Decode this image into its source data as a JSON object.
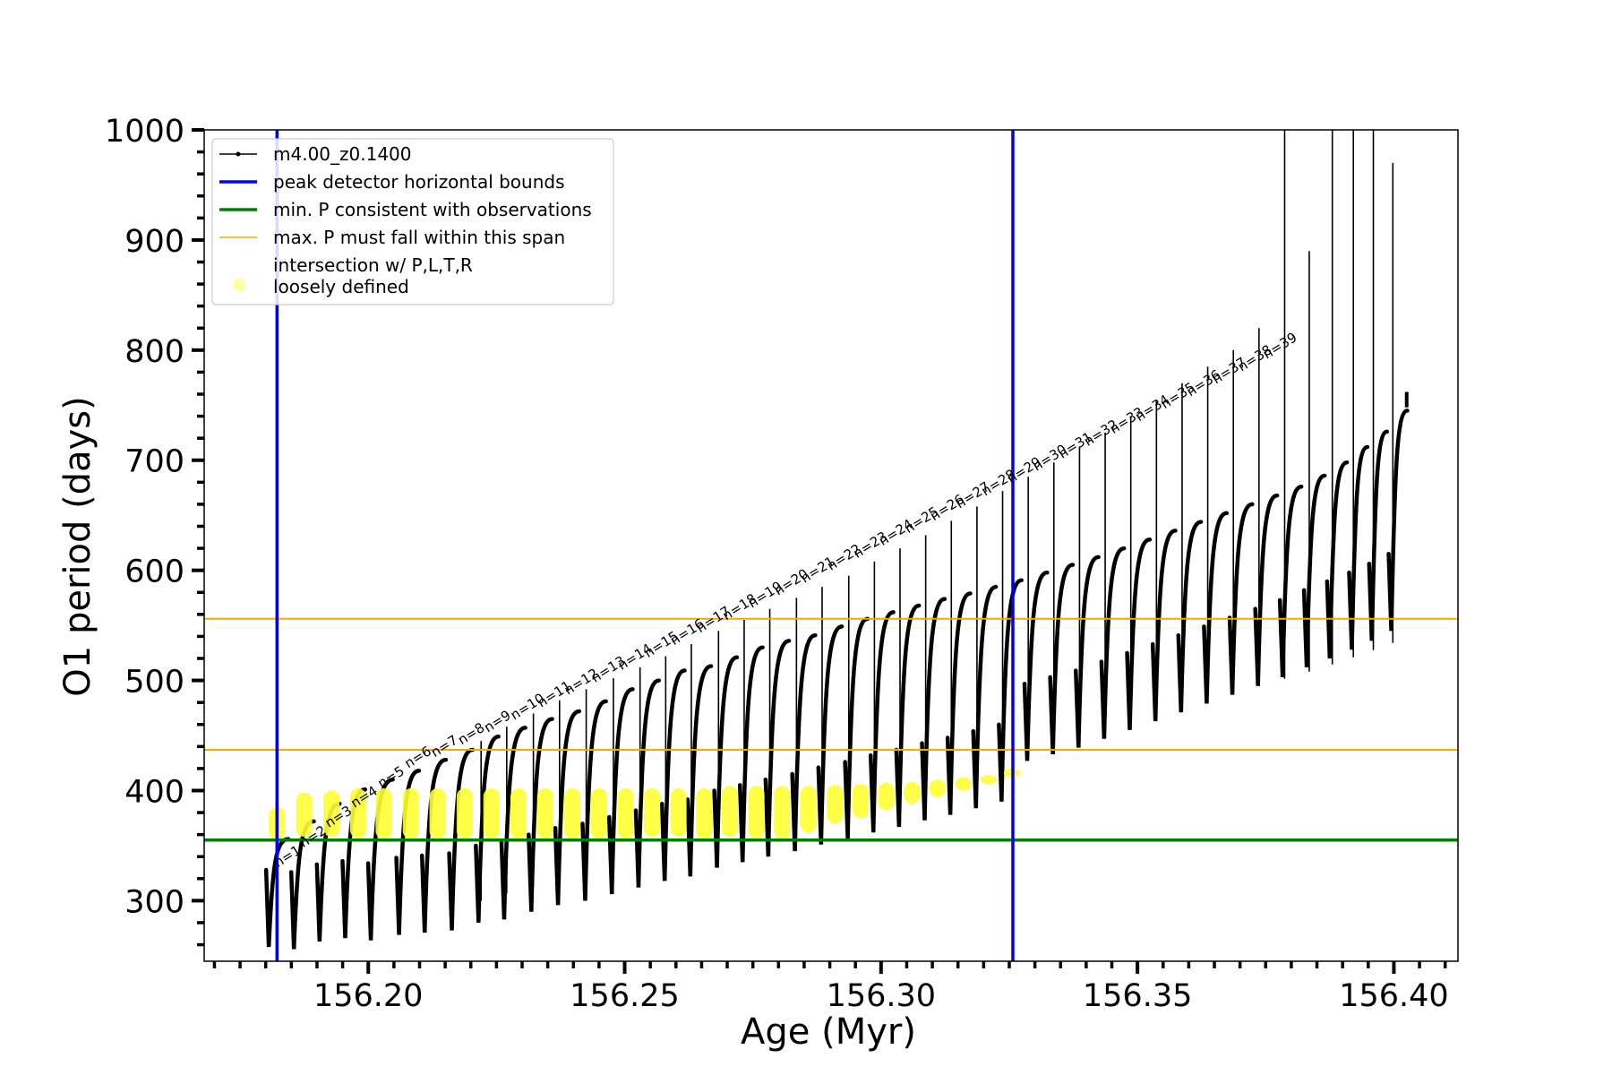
{
  "chart_data": {
    "type": "line",
    "xlabel": "Age (Myr)",
    "ylabel": "O1 period (days)",
    "xlim": [
      156.168,
      156.4125
    ],
    "ylim": [
      245,
      1000
    ],
    "xticks": [
      156.2,
      156.25,
      156.3,
      156.35,
      156.4
    ],
    "xtick_labels": [
      "156.20",
      "156.25",
      "156.30",
      "156.35",
      "156.40"
    ],
    "yticks": [
      300,
      400,
      500,
      600,
      700,
      800,
      900,
      1000
    ],
    "ytick_labels": [
      "300",
      "400",
      "500",
      "600",
      "700",
      "800",
      "900",
      "1000"
    ],
    "grid": false,
    "legend_position": "top-left",
    "legend": [
      {
        "label": "m4.00_z0.1400",
        "color": "#000000",
        "style": "line-marker"
      },
      {
        "label": "peak detector horizontal bounds",
        "color": "#0000ff",
        "style": "line"
      },
      {
        "label": "min. P consistent with observations",
        "color": "#008000",
        "style": "line"
      },
      {
        "label": "max. P must fall within this span",
        "color": "#ffa500",
        "style": "line"
      },
      {
        "label": "intersection w/ P,L,T,R\nloosely defined",
        "color": "#ffff66",
        "style": "dot"
      }
    ],
    "reference_lines": {
      "vertical_blue": [
        156.1822,
        156.3257
      ],
      "horizontal_green": 355,
      "horizontal_orange": [
        437,
        556
      ]
    },
    "series": [
      {
        "name": "m4.00_z0.1400",
        "color": "#000000",
        "pulses": [
          {
            "n": 1,
            "x": 156.1806,
            "min": 258,
            "max": 356
          },
          {
            "n": 2,
            "x": 156.1855,
            "min": 256,
            "max": 372
          },
          {
            "n": 3,
            "x": 156.1905,
            "min": 263,
            "max": 388
          },
          {
            "n": 4,
            "x": 156.1955,
            "min": 266,
            "max": 401
          },
          {
            "n": 5,
            "x": 156.2005,
            "min": 264,
            "max": 410
          },
          {
            "n": 6,
            "x": 156.206,
            "min": 269,
            "max": 418
          },
          {
            "n": 7,
            "x": 156.211,
            "min": 271,
            "max": 428
          },
          {
            "n": 8,
            "x": 156.2163,
            "min": 273,
            "max": 437
          },
          {
            "n": 9,
            "x": 156.2215,
            "min": 280,
            "max": 449
          },
          {
            "n": 10,
            "x": 156.2265,
            "min": 283,
            "max": 457
          },
          {
            "n": 11,
            "x": 156.2318,
            "min": 290,
            "max": 465
          },
          {
            "n": 12,
            "x": 156.237,
            "min": 296,
            "max": 472
          },
          {
            "n": 13,
            "x": 156.2423,
            "min": 300,
            "max": 481
          },
          {
            "n": 14,
            "x": 156.2475,
            "min": 306,
            "max": 492
          },
          {
            "n": 15,
            "x": 156.2527,
            "min": 312,
            "max": 500
          },
          {
            "n": 16,
            "x": 156.2578,
            "min": 318,
            "max": 509
          },
          {
            "n": 17,
            "x": 156.2628,
            "min": 322,
            "max": 513
          },
          {
            "n": 18,
            "x": 156.268,
            "min": 330,
            "max": 521
          },
          {
            "n": 19,
            "x": 156.273,
            "min": 335,
            "max": 530
          },
          {
            "n": 20,
            "x": 156.278,
            "min": 340,
            "max": 536
          },
          {
            "n": 21,
            "x": 156.2832,
            "min": 345,
            "max": 541
          },
          {
            "n": 22,
            "x": 156.2883,
            "min": 351,
            "max": 549
          },
          {
            "n": 23,
            "x": 156.2935,
            "min": 356,
            "max": 556
          },
          {
            "n": 24,
            "x": 156.2985,
            "min": 362,
            "max": 562
          },
          {
            "n": 25,
            "x": 156.3035,
            "min": 367,
            "max": 568
          },
          {
            "n": 26,
            "x": 156.3085,
            "min": 373,
            "max": 574
          },
          {
            "n": 27,
            "x": 156.3135,
            "min": 378,
            "max": 579
          },
          {
            "n": 28,
            "x": 156.3185,
            "min": 384,
            "max": 585
          },
          {
            "n": 29,
            "x": 156.3235,
            "min": 390,
            "max": 591
          },
          {
            "n": 30,
            "x": 156.3285,
            "min": 427,
            "max": 598
          },
          {
            "n": 31,
            "x": 156.3335,
            "min": 433,
            "max": 605
          },
          {
            "n": 32,
            "x": 156.3385,
            "min": 439,
            "max": 612
          },
          {
            "n": 33,
            "x": 156.3435,
            "min": 447,
            "max": 620
          },
          {
            "n": 34,
            "x": 156.3485,
            "min": 455,
            "max": 628
          },
          {
            "n": 35,
            "x": 156.3535,
            "min": 463,
            "max": 636
          },
          {
            "n": 36,
            "x": 156.3585,
            "min": 471,
            "max": 644
          },
          {
            "n": 37,
            "x": 156.3635,
            "min": 479,
            "max": 652
          },
          {
            "n": 38,
            "x": 156.3685,
            "min": 487,
            "max": 660
          },
          {
            "n": 39,
            "x": 156.3735,
            "min": 495,
            "max": 668
          },
          {
            "n": 40,
            "x": 156.3783,
            "min": 503,
            "max": 676
          },
          {
            "n": 41,
            "x": 156.383,
            "min": 512,
            "max": 686
          },
          {
            "n": 42,
            "x": 156.3875,
            "min": 520,
            "max": 698
          },
          {
            "n": 43,
            "x": 156.3918,
            "min": 528,
            "max": 712
          },
          {
            "n": 44,
            "x": 156.3957,
            "min": 536,
            "max": 726
          },
          {
            "n": 45,
            "x": 156.3995,
            "min": 545,
            "max": 745
          }
        ],
        "spikes": [
          {
            "x": 156.222,
            "top": 445
          },
          {
            "x": 156.227,
            "top": 458
          },
          {
            "x": 156.2322,
            "top": 470
          },
          {
            "x": 156.2373,
            "top": 482
          },
          {
            "x": 156.2425,
            "top": 492
          },
          {
            "x": 156.2478,
            "top": 502
          },
          {
            "x": 156.253,
            "top": 512
          },
          {
            "x": 156.258,
            "top": 522
          },
          {
            "x": 156.263,
            "top": 533
          },
          {
            "x": 156.2683,
            "top": 545
          },
          {
            "x": 156.2733,
            "top": 555
          },
          {
            "x": 156.2783,
            "top": 565
          },
          {
            "x": 156.2835,
            "top": 575
          },
          {
            "x": 156.2885,
            "top": 585
          },
          {
            "x": 156.2937,
            "top": 595
          },
          {
            "x": 156.2987,
            "top": 608
          },
          {
            "x": 156.3037,
            "top": 620
          },
          {
            "x": 156.3087,
            "top": 632
          },
          {
            "x": 156.3137,
            "top": 645
          },
          {
            "x": 156.3187,
            "top": 658
          },
          {
            "x": 156.3237,
            "top": 672
          },
          {
            "x": 156.3287,
            "top": 685
          },
          {
            "x": 156.3337,
            "top": 698
          },
          {
            "x": 156.3387,
            "top": 712
          },
          {
            "x": 156.3437,
            "top": 725
          },
          {
            "x": 156.3487,
            "top": 740
          },
          {
            "x": 156.3537,
            "top": 755
          },
          {
            "x": 156.3587,
            "top": 770
          },
          {
            "x": 156.3637,
            "top": 785
          },
          {
            "x": 156.3687,
            "top": 800
          },
          {
            "x": 156.3737,
            "top": 820
          },
          {
            "x": 156.3787,
            "top": 1000
          },
          {
            "x": 156.3835,
            "top": 890
          },
          {
            "x": 156.388,
            "top": 1000
          },
          {
            "x": 156.3921,
            "top": 1000
          },
          {
            "x": 156.396,
            "top": 1000
          },
          {
            "x": 156.3998,
            "top": 970
          }
        ]
      }
    ],
    "intersection_points": [
      {
        "x": 156.1822,
        "y_min": 355,
        "y_max": 385
      },
      {
        "x": 156.1875,
        "y_min": 358,
        "y_max": 398
      },
      {
        "x": 156.1928,
        "y_min": 358,
        "y_max": 400
      },
      {
        "x": 156.198,
        "y_min": 357,
        "y_max": 402
      },
      {
        "x": 156.203,
        "y_min": 356,
        "y_max": 402
      },
      {
        "x": 156.2083,
        "y_min": 356,
        "y_max": 402
      },
      {
        "x": 156.2135,
        "y_min": 356,
        "y_max": 402
      },
      {
        "x": 156.2188,
        "y_min": 356,
        "y_max": 402
      },
      {
        "x": 156.224,
        "y_min": 356,
        "y_max": 402
      },
      {
        "x": 156.2293,
        "y_min": 356,
        "y_max": 402
      },
      {
        "x": 156.2345,
        "y_min": 356,
        "y_max": 402
      },
      {
        "x": 156.2398,
        "y_min": 356,
        "y_max": 402
      },
      {
        "x": 156.245,
        "y_min": 356,
        "y_max": 402
      },
      {
        "x": 156.2502,
        "y_min": 356,
        "y_max": 402
      },
      {
        "x": 156.2553,
        "y_min": 358,
        "y_max": 402
      },
      {
        "x": 156.2605,
        "y_min": 358,
        "y_max": 402
      },
      {
        "x": 156.2655,
        "y_min": 356,
        "y_max": 402
      },
      {
        "x": 156.2705,
        "y_min": 358,
        "y_max": 404
      },
      {
        "x": 156.2757,
        "y_min": 356,
        "y_max": 404
      },
      {
        "x": 156.2807,
        "y_min": 356,
        "y_max": 404
      },
      {
        "x": 156.2858,
        "y_min": 362,
        "y_max": 404
      },
      {
        "x": 156.291,
        "y_min": 370,
        "y_max": 405
      },
      {
        "x": 156.296,
        "y_min": 375,
        "y_max": 406
      },
      {
        "x": 156.301,
        "y_min": 382,
        "y_max": 407
      },
      {
        "x": 156.306,
        "y_min": 388,
        "y_max": 408
      },
      {
        "x": 156.311,
        "y_min": 394,
        "y_max": 410
      },
      {
        "x": 156.316,
        "y_min": 400,
        "y_max": 412
      },
      {
        "x": 156.321,
        "y_min": 406,
        "y_max": 414
      },
      {
        "x": 156.3255,
        "y_min": 418,
        "y_max": 420
      }
    ],
    "annotations": [
      "n=1",
      "n=2",
      "n=3",
      "n=4",
      "n=5",
      "n=6",
      "n=7",
      "n=8",
      "n=9",
      "n=10",
      "n=11",
      "n=12",
      "n=13",
      "n=14",
      "n=15",
      "n=16",
      "n=17",
      "n=18",
      "n=19",
      "n=20",
      "n=21",
      "n=22",
      "n=23",
      "n=24",
      "n=25",
      "n=26",
      "n=27",
      "n=28",
      "n=29",
      "n=30",
      "n=31",
      "n=32",
      "n=33",
      "n=34",
      "n=35",
      "n=36",
      "n=37",
      "n=38",
      "n=39"
    ]
  }
}
